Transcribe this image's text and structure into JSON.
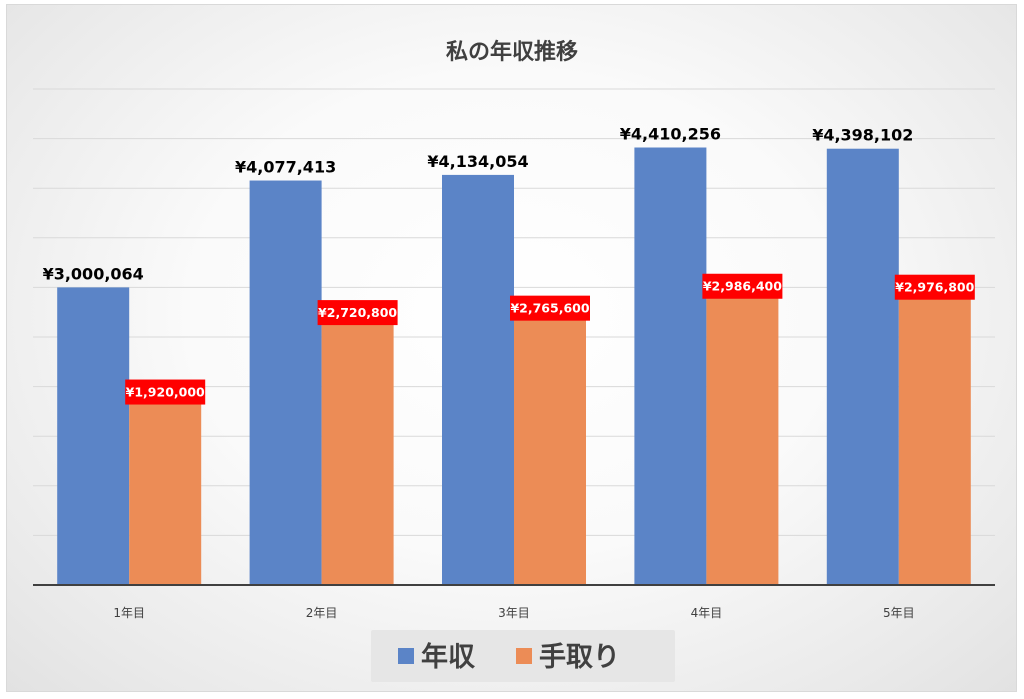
{
  "chart_data": {
    "type": "bar",
    "title": "私の年収推移",
    "categories": [
      "1年目",
      "2年目",
      "3年目",
      "4年目",
      "5年目"
    ],
    "series": [
      {
        "name": "年収",
        "color": "#5b84c7",
        "values": [
          3000064,
          4077413,
          4134054,
          4410256,
          4398102
        ],
        "labels": [
          "¥3,000,064",
          "¥4,077,413",
          "¥4,134,054",
          "¥4,410,256",
          "¥4,398,102"
        ]
      },
      {
        "name": "手取り",
        "color": "#ec8c56",
        "label_background": "#ff0000",
        "values": [
          1920000,
          2720800,
          2765600,
          2986400,
          2976800
        ],
        "labels": [
          "¥1,920,000",
          "¥2,720,800",
          "¥2,765,600",
          "¥2,986,400",
          "¥2,976,800"
        ]
      }
    ],
    "ylim": [
      0,
      5000000
    ],
    "y_gridline_step": 500000,
    "y_tick_labels_shown": false,
    "grid": true,
    "legend_position": "bottom"
  }
}
